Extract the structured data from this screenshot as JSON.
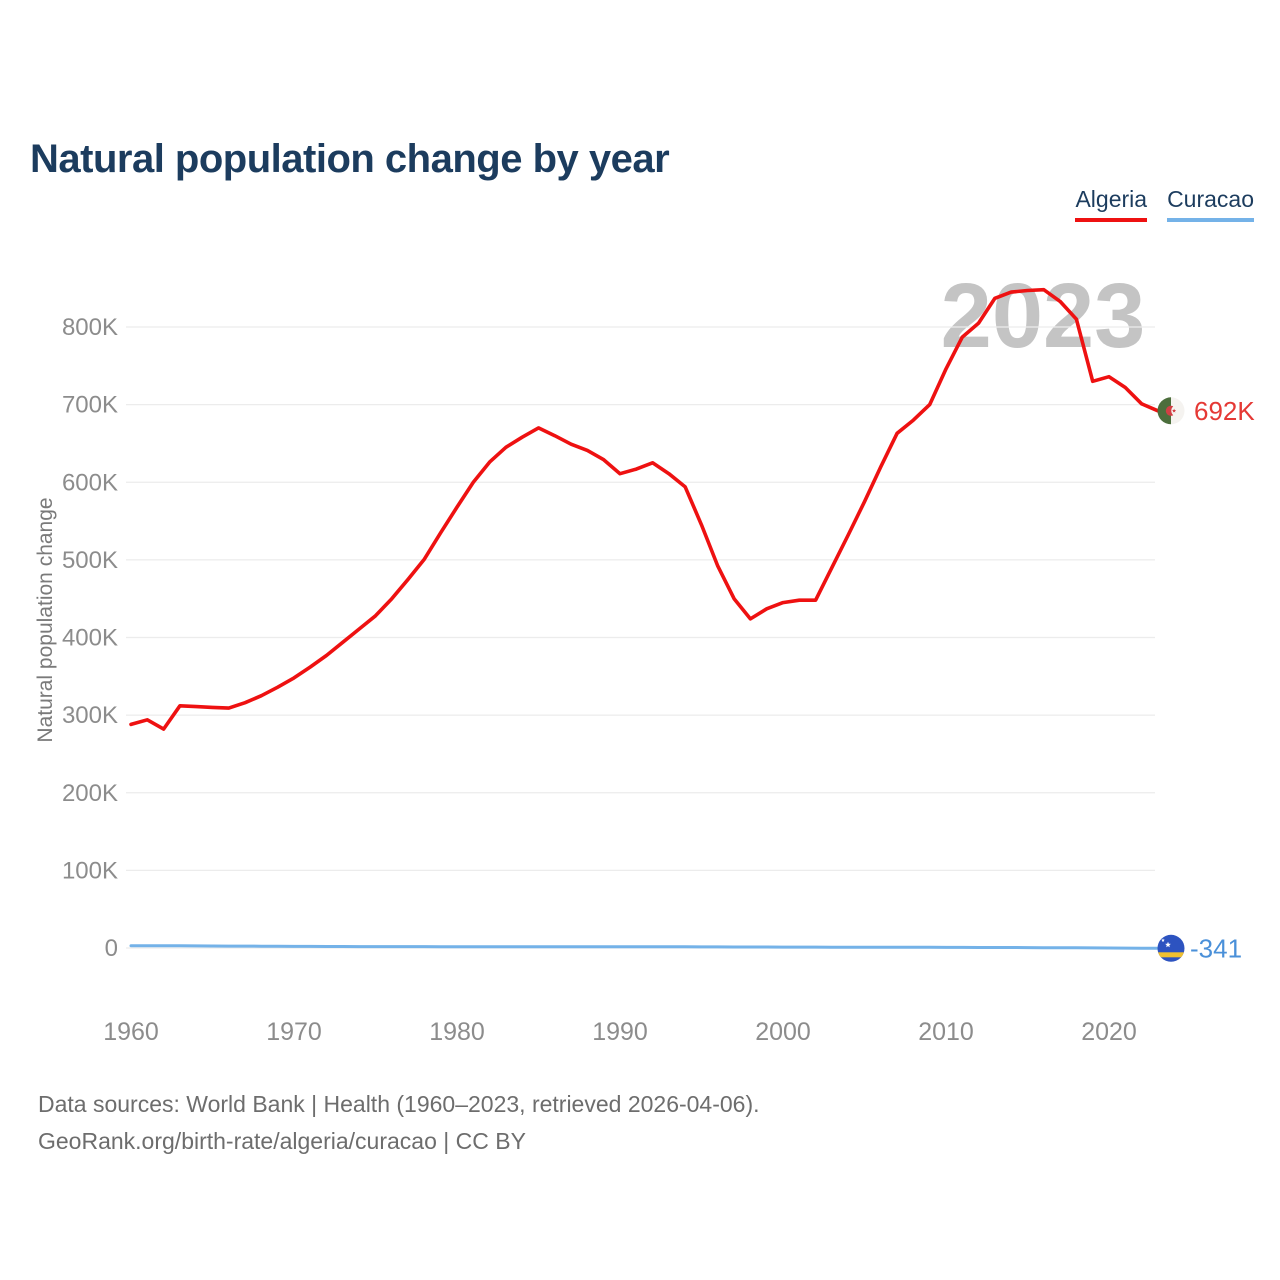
{
  "title": "Natural population change by year",
  "legend": {
    "items": [
      {
        "label": "Algeria",
        "color": "#ee1111"
      },
      {
        "label": "Curacao",
        "color": "#74b2e8"
      }
    ]
  },
  "watermark": "2023",
  "y_axis": {
    "title": "Natural population change",
    "ticks": [
      "0",
      "100K",
      "200K",
      "300K",
      "400K",
      "500K",
      "600K",
      "700K",
      "800K"
    ]
  },
  "x_axis": {
    "ticks": [
      "1960",
      "1970",
      "1980",
      "1990",
      "2000",
      "2010",
      "2020"
    ]
  },
  "end_labels": {
    "algeria": {
      "value": "692K",
      "flag": "algeria-flag",
      "color": "#e53935"
    },
    "curacao": {
      "value": "-341",
      "flag": "curacao-flag",
      "color": "#4a90d9"
    }
  },
  "source": {
    "line1": "Data sources: World Bank | Health (1960–2023, retrieved 2026-04-06).",
    "line2": "GeoRank.org/birth-rate/algeria/curacao | CC BY"
  },
  "colors": {
    "title_text": "#1c3c5e",
    "algeria_line": "#ee1111",
    "curacao_line": "#74b2e8",
    "gridline": "#ececec",
    "tick_text": "#8c8c8c",
    "axis_title_text": "#7a7a7a",
    "watermark_text": "#c4c4c4",
    "source_text": "#6d6d6d",
    "algeria_flag_green": "#4c6e3c",
    "algeria_flag_red": "#d13f44",
    "curacao_flag_blue": "#2d53c0",
    "curacao_flag_yellow": "#f0c030"
  },
  "chart_data": {
    "type": "line",
    "title": "Natural population change by year",
    "xlabel": "",
    "ylabel": "Natural population change",
    "x_range": [
      1960,
      2023
    ],
    "axis_y_ticks": [
      0,
      100000,
      200000,
      300000,
      400000,
      500000,
      600000,
      700000,
      800000
    ],
    "grid": true,
    "legend_position": "top-right",
    "x": [
      1960,
      1961,
      1962,
      1963,
      1964,
      1965,
      1966,
      1967,
      1968,
      1969,
      1970,
      1971,
      1972,
      1973,
      1974,
      1975,
      1976,
      1977,
      1978,
      1979,
      1980,
      1981,
      1982,
      1983,
      1984,
      1985,
      1986,
      1987,
      1988,
      1989,
      1990,
      1991,
      1992,
      1993,
      1994,
      1995,
      1996,
      1997,
      1998,
      1999,
      2000,
      2001,
      2002,
      2003,
      2004,
      2005,
      2006,
      2007,
      2008,
      2009,
      2010,
      2011,
      2012,
      2013,
      2014,
      2015,
      2016,
      2017,
      2018,
      2019,
      2020,
      2021,
      2022,
      2023
    ],
    "series": [
      {
        "name": "Algeria",
        "color": "#ee1111",
        "end_label": "692K",
        "values": [
          288000,
          294000,
          282000,
          312000,
          311000,
          310000,
          309000,
          316000,
          325000,
          336000,
          348000,
          362000,
          377000,
          394000,
          411000,
          428000,
          450000,
          475000,
          501000,
          535000,
          568000,
          600000,
          626000,
          645000,
          658000,
          670000,
          660000,
          649000,
          641000,
          629000,
          611000,
          617000,
          625000,
          611000,
          594000,
          545000,
          492000,
          450000,
          424000,
          437000,
          445000,
          448000,
          448000,
          490000,
          532000,
          575000,
          620000,
          663000,
          680000,
          700000,
          746000,
          787000,
          805000,
          837000,
          845000,
          847000,
          848000,
          833000,
          810000,
          730000,
          736000,
          722000,
          701000,
          692000
        ]
      },
      {
        "name": "Curacao",
        "color": "#74b2e8",
        "end_label": "-341",
        "values": [
          2900,
          2870,
          2840,
          2800,
          2700,
          2600,
          2500,
          2400,
          2300,
          2200,
          2100,
          2000,
          1950,
          1900,
          1850,
          1800,
          1780,
          1760,
          1750,
          1730,
          1700,
          1680,
          1660,
          1650,
          1630,
          1600,
          1620,
          1640,
          1660,
          1680,
          1700,
          1650,
          1600,
          1550,
          1500,
          1450,
          1400,
          1350,
          1300,
          1250,
          1200,
          1150,
          1100,
          1050,
          1000,
          950,
          900,
          880,
          860,
          840,
          800,
          750,
          700,
          650,
          600,
          500,
          400,
          300,
          200,
          100,
          0,
          -100,
          -220,
          -341
        ]
      }
    ]
  }
}
